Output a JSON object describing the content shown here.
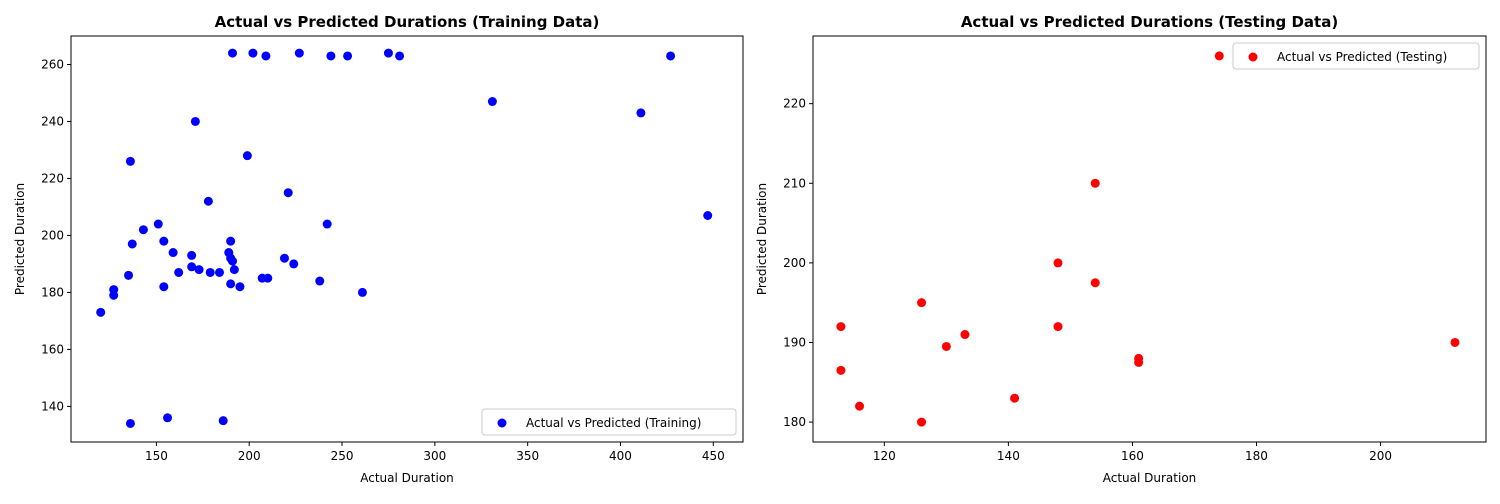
{
  "chart_data": [
    {
      "type": "scatter",
      "title": "Actual vs Predicted Durations (Training Data)",
      "xlabel": "Actual Duration",
      "ylabel": "Predicted Duration",
      "xlim": [
        104,
        466
      ],
      "ylim": [
        127.5,
        270
      ],
      "xticks": [
        150,
        200,
        250,
        300,
        350,
        400,
        450
      ],
      "yticks": [
        140,
        160,
        180,
        200,
        220,
        240,
        260
      ],
      "legend_position": "lower-right",
      "grid": false,
      "series": [
        {
          "name": "Actual vs Predicted (Training)",
          "color": "#0000ff",
          "points": [
            [
              120,
              173
            ],
            [
              127,
              181
            ],
            [
              127,
              179
            ],
            [
              135,
              186
            ],
            [
              136,
              226
            ],
            [
              136,
              134
            ],
            [
              137,
              197
            ],
            [
              143,
              202
            ],
            [
              151,
              204
            ],
            [
              154,
              198
            ],
            [
              154,
              182
            ],
            [
              156,
              136
            ],
            [
              159,
              194
            ],
            [
              162,
              187
            ],
            [
              169,
              193
            ],
            [
              169,
              189
            ],
            [
              171,
              240
            ],
            [
              173,
              188
            ],
            [
              178,
              212
            ],
            [
              179,
              187
            ],
            [
              184,
              187
            ],
            [
              186,
              135
            ],
            [
              189,
              194
            ],
            [
              190,
              198
            ],
            [
              190,
              192
            ],
            [
              190,
              183
            ],
            [
              191,
              191
            ],
            [
              191,
              264
            ],
            [
              192,
              188
            ],
            [
              195,
              182
            ],
            [
              199,
              228
            ],
            [
              202,
              264
            ],
            [
              207,
              185
            ],
            [
              209,
              263
            ],
            [
              210,
              185
            ],
            [
              219,
              192
            ],
            [
              221,
              215
            ],
            [
              224,
              190
            ],
            [
              227,
              264
            ],
            [
              238,
              184
            ],
            [
              242,
              204
            ],
            [
              244,
              263
            ],
            [
              253,
              263
            ],
            [
              261,
              180
            ],
            [
              275,
              264
            ],
            [
              281,
              263
            ],
            [
              331,
              247
            ],
            [
              411,
              243
            ],
            [
              427,
              263
            ],
            [
              447,
              207
            ]
          ]
        }
      ]
    },
    {
      "type": "scatter",
      "title": "Actual vs Predicted Durations (Testing Data)",
      "xlabel": "Actual Duration",
      "ylabel": "Predicted Duration",
      "xlim": [
        108.5,
        217
      ],
      "ylim": [
        177.5,
        228.5
      ],
      "xticks": [
        120,
        140,
        160,
        180,
        200
      ],
      "yticks": [
        180,
        190,
        200,
        210,
        220
      ],
      "legend_position": "upper-right",
      "grid": false,
      "series": [
        {
          "name": "Actual vs Predicted (Testing)",
          "color": "#ff0000",
          "points": [
            [
              113,
              192
            ],
            [
              113,
              186.5
            ],
            [
              116,
              182
            ],
            [
              126,
              195
            ],
            [
              126,
              180
            ],
            [
              130,
              189.5
            ],
            [
              133,
              191
            ],
            [
              141,
              183
            ],
            [
              148,
              200
            ],
            [
              148,
              192
            ],
            [
              154,
              210
            ],
            [
              154,
              197.5
            ],
            [
              161,
              188
            ],
            [
              161,
              187.5
            ],
            [
              174,
              226
            ],
            [
              212,
              190
            ]
          ]
        }
      ]
    }
  ]
}
